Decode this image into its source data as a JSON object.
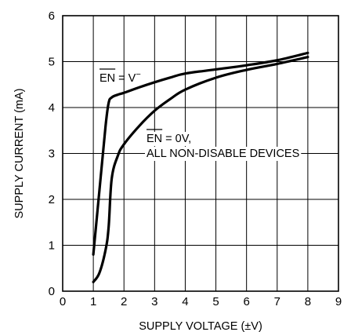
{
  "chart_data": {
    "type": "line",
    "xlabel": "SUPPLY VOLTAGE (±V)",
    "ylabel": "SUPPLY CURRENT (mA)",
    "xlim": [
      0,
      9
    ],
    "ylim": [
      0,
      6
    ],
    "xticks": [
      "0",
      "1",
      "2",
      "3",
      "4",
      "5",
      "6",
      "7",
      "8",
      "9"
    ],
    "yticks": [
      "0",
      "1",
      "2",
      "3",
      "4",
      "5",
      "6"
    ],
    "grid": true,
    "series": [
      {
        "name": "EN = V⁻",
        "x": [
          1.0,
          1.2,
          1.4,
          1.5,
          1.6,
          1.8,
          2.0,
          2.5,
          3.0,
          3.5,
          4.0,
          5.0,
          6.0,
          7.0,
          8.0
        ],
        "y": [
          0.8,
          2.2,
          3.6,
          4.1,
          4.22,
          4.28,
          4.32,
          4.44,
          4.55,
          4.65,
          4.74,
          4.83,
          4.92,
          5.03,
          5.19
        ]
      },
      {
        "name": "EN = 0V, ALL NON-DISABLE DEVICES",
        "x": [
          1.0,
          1.2,
          1.4,
          1.5,
          1.6,
          1.8,
          2.0,
          2.5,
          3.0,
          3.5,
          4.0,
          5.0,
          6.0,
          7.0,
          8.0
        ],
        "y": [
          0.2,
          0.4,
          0.9,
          1.4,
          2.45,
          2.95,
          3.2,
          3.6,
          3.93,
          4.18,
          4.39,
          4.65,
          4.82,
          4.95,
          5.1
        ]
      }
    ],
    "annotations": {
      "en_v_minus": {
        "over": "EN",
        "rest": " = V",
        "sup": "−"
      },
      "en_zero": {
        "over": "EN",
        "rest": " = 0V,",
        "line2": "ALL NON-DISABLE DEVICES"
      }
    }
  }
}
